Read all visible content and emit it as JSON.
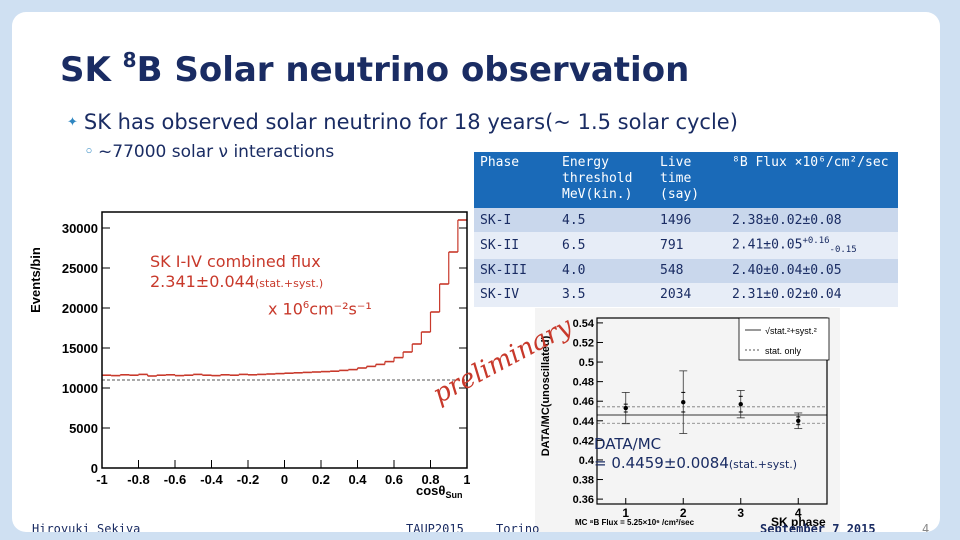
{
  "slide": {
    "title_prefix": "SK ",
    "title_sup": "8",
    "title_rest": "B Solar neutrino observation",
    "bullet_main": "SK has observed solar neutrino for 18 years(~ 1.5 solar cycle)",
    "bullet_sub": "~77000 solar ν interactions"
  },
  "table": {
    "headers": [
      "Phase",
      "Energy threshold MeV(kin.)",
      "Live time (say)",
      "⁸B Flux ×10⁶/cm²/sec"
    ],
    "rows": [
      {
        "phase": "SK-I",
        "threshold": "4.5",
        "live": "1496",
        "flux": "2.38±0.02±0.08",
        "flux_sup": "",
        "flux_sub": ""
      },
      {
        "phase": "SK-II",
        "threshold": "6.5",
        "live": "791",
        "flux": "2.41±0.05",
        "flux_sup": "+0.16",
        "flux_sub": "-0.15"
      },
      {
        "phase": "SK-III",
        "threshold": "4.0",
        "live": "548",
        "flux": "2.40±0.04±0.05",
        "flux_sup": "",
        "flux_sub": ""
      },
      {
        "phase": "SK-IV",
        "threshold": "3.5",
        "live": "2034",
        "flux": "2.31±0.02±0.04",
        "flux_sup": "",
        "flux_sub": ""
      }
    ]
  },
  "left_plot": {
    "ylabel": "Events/bin",
    "xlabel": "cosθ",
    "xlabel_sub": "Sun",
    "combined_title": "SK I-IV combined flux",
    "combined_value": "2.341±0.044",
    "combined_err": "(stat.+syst.)",
    "combined_unit": "x 10",
    "combined_unit_exp": "6",
    "combined_unit_rest": "cm⁻²s⁻¹"
  },
  "right_plot": {
    "ylabel": "DATA/MC(unoscillated)",
    "xlabel": "SK phase",
    "legend_top": "√stat.²+syst.²",
    "legend_bottom": "stat. only",
    "mc_note": "MC ⁸B Flux = 5.25×10⁶ /cm²/sec",
    "datamc_line1": "DATA/MC",
    "datamc_line2": "= 0.4459±0.0084",
    "datamc_err": "(stat.+syst.)"
  },
  "watermark": "preliminary",
  "footer": {
    "author": "Hiroyuki Sekiya",
    "conf": "TAUP2015",
    "place": "Torino",
    "date": "September 7 2015",
    "page": "4"
  },
  "chart_data": [
    {
      "type": "line",
      "xlabel": "cosθSun",
      "ylabel": "Events/bin",
      "xlim": [
        -1,
        1
      ],
      "ylim": [
        0,
        32000
      ],
      "x_ticks": [
        -1,
        -0.8,
        -0.6,
        -0.4,
        -0.2,
        0,
        0.2,
        0.4,
        0.6,
        0.8,
        1
      ],
      "y_ticks": [
        0,
        5000,
        10000,
        15000,
        20000,
        25000,
        30000
      ],
      "y_tick_labels": [
        "0",
        "5000",
        "10000",
        "15000",
        "20000",
        "25000",
        "30000"
      ],
      "x": [
        -0.975,
        -0.925,
        -0.875,
        -0.825,
        -0.775,
        -0.725,
        -0.675,
        -0.625,
        -0.575,
        -0.525,
        -0.475,
        -0.425,
        -0.375,
        -0.325,
        -0.275,
        -0.225,
        -0.175,
        -0.125,
        -0.075,
        -0.025,
        0.025,
        0.075,
        0.125,
        0.175,
        0.225,
        0.275,
        0.325,
        0.375,
        0.425,
        0.475,
        0.525,
        0.575,
        0.625,
        0.675,
        0.725,
        0.775,
        0.825,
        0.875,
        0.925,
        0.975
      ],
      "values": [
        11600,
        11550,
        11650,
        11600,
        11700,
        11500,
        11600,
        11650,
        11550,
        11600,
        11700,
        11600,
        11550,
        11650,
        11600,
        11700,
        11650,
        11700,
        11750,
        11800,
        11850,
        11900,
        11950,
        12000,
        12050,
        12100,
        12200,
        12300,
        12500,
        12700,
        12950,
        13300,
        13800,
        14500,
        15500,
        17000,
        19500,
        23000,
        27000,
        31000
      ],
      "background_level": 11000
    },
    {
      "type": "scatter",
      "xlabel": "SK phase",
      "ylabel": "DATA/MC(unoscillated)",
      "xlim": [
        0.5,
        4.5
      ],
      "ylim": [
        0.355,
        0.545
      ],
      "x_ticks": [
        1,
        2,
        3,
        4
      ],
      "y_ticks": [
        0.36,
        0.38,
        0.4,
        0.42,
        0.44,
        0.46,
        0.48,
        0.5,
        0.52,
        0.54
      ],
      "x": [
        1,
        2,
        3,
        4
      ],
      "values": [
        0.453,
        0.459,
        0.457,
        0.44
      ],
      "stat_err": [
        0.004,
        0.01,
        0.008,
        0.004
      ],
      "total_err": [
        0.016,
        0.032,
        0.014,
        0.008
      ],
      "mean": 0.4459,
      "mean_err": 0.0084
    }
  ]
}
